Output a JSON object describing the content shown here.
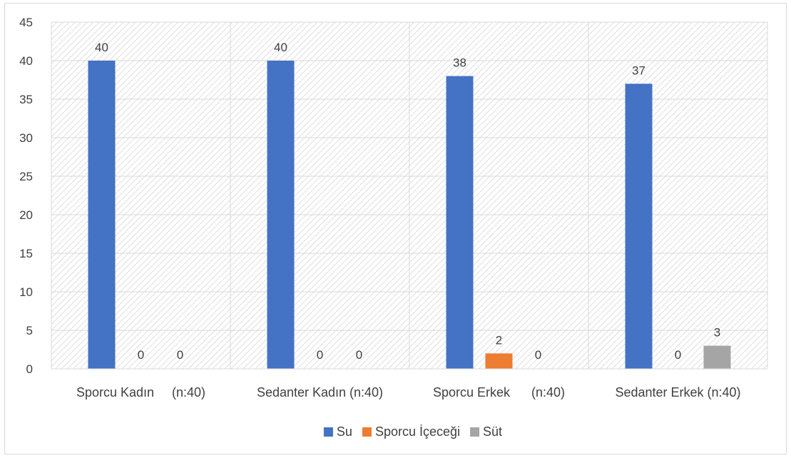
{
  "chart_data": {
    "type": "bar",
    "title": "",
    "xlabel": "",
    "ylabel": "",
    "ylim": [
      0,
      45
    ],
    "yticks": [
      0,
      5,
      10,
      15,
      20,
      25,
      30,
      35,
      40,
      45
    ],
    "grid": true,
    "legend_position": "bottom",
    "categories": [
      "Sporcu Kadın     (n:40)",
      "Sedanter Kadın (n:40)",
      "Sporcu Erkek      (n:40)",
      "Sedanter Erkek (n:40)"
    ],
    "series": [
      {
        "name": "Su",
        "color": "#4472c4",
        "values": [
          40,
          40,
          38,
          37
        ]
      },
      {
        "name": "Sporcu İçeceği",
        "color": "#ed7d31",
        "values": [
          0,
          0,
          2,
          0
        ]
      },
      {
        "name": "Süt",
        "color": "#a5a5a5",
        "values": [
          0,
          0,
          0,
          3
        ]
      }
    ]
  }
}
